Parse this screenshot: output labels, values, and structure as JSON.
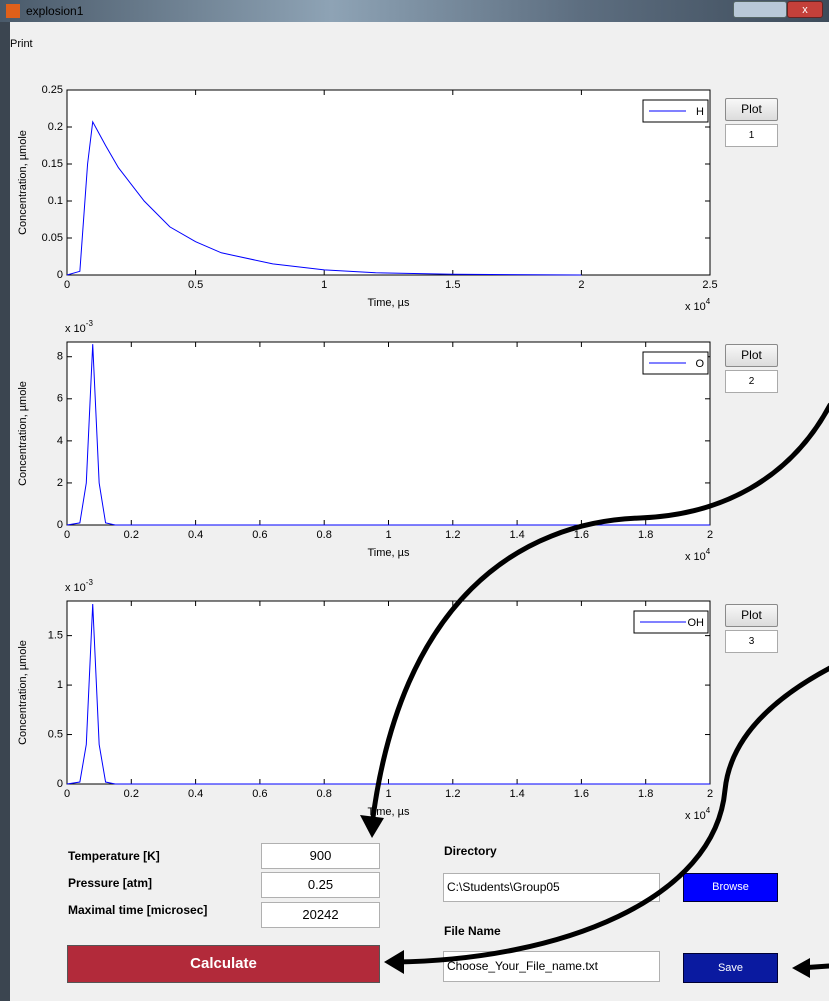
{
  "window": {
    "title": "explosion1",
    "menu": "Print"
  },
  "chart_data": [
    {
      "type": "line",
      "xlabel": "Time, µs",
      "ylabel": "Concentration, µmole",
      "x": [
        0,
        0.05,
        0.08,
        0.1,
        0.15,
        0.2,
        0.3,
        0.4,
        0.5,
        0.6,
        0.8,
        1.0,
        1.2,
        1.5,
        2.0
      ],
      "series": [
        {
          "name": "H",
          "color": "#0000ff",
          "values": [
            0,
            0.005,
            0.15,
            0.207,
            0.175,
            0.145,
            0.1,
            0.065,
            0.045,
            0.03,
            0.015,
            0.007,
            0.003,
            0.001,
            0
          ]
        }
      ],
      "xlim": [
        0,
        2.5
      ],
      "ylim": [
        0,
        0.25
      ],
      "xticks": [
        0,
        0.5,
        1,
        1.5,
        2,
        2.5
      ],
      "yticks": [
        0,
        0.05,
        0.1,
        0.15,
        0.2,
        0.25
      ],
      "x_scale": {
        "base": "x 10",
        "exponent": "4"
      },
      "legend": "upper right"
    },
    {
      "type": "line",
      "xlabel": "Time, µs",
      "ylabel": "Concentration, µmole",
      "x": [
        0,
        0.04,
        0.06,
        0.08,
        0.1,
        0.12,
        0.15,
        2.0
      ],
      "series": [
        {
          "name": "O",
          "color": "#0000ff",
          "values": [
            0,
            0.1,
            2,
            8.6,
            2,
            0.1,
            0,
            0
          ]
        }
      ],
      "xlim": [
        0,
        2
      ],
      "ylim": [
        0,
        8.7
      ],
      "xticks": [
        0,
        0.2,
        0.4,
        0.6,
        0.8,
        1,
        1.2,
        1.4,
        1.6,
        1.8,
        2
      ],
      "yticks": [
        0,
        2,
        4,
        6,
        8
      ],
      "x_scale": {
        "base": "x 10",
        "exponent": "4"
      },
      "y_scale": {
        "base": "x 10",
        "exponent": "-3"
      },
      "legend": "upper right"
    },
    {
      "type": "line",
      "xlabel": "Time, µs",
      "ylabel": "Concentration, µmole",
      "x": [
        0,
        0.04,
        0.06,
        0.08,
        0.1,
        0.12,
        0.15,
        2.0
      ],
      "series": [
        {
          "name": "OH",
          "color": "#0000ff",
          "values": [
            0,
            0.02,
            0.4,
            1.82,
            0.4,
            0.02,
            0,
            0
          ]
        }
      ],
      "xlim": [
        0,
        2
      ],
      "ylim": [
        0,
        1.85
      ],
      "xticks": [
        0,
        0.2,
        0.4,
        0.6,
        0.8,
        1,
        1.2,
        1.4,
        1.6,
        1.8,
        2
      ],
      "yticks": [
        0,
        0.5,
        1,
        1.5
      ],
      "x_scale": {
        "base": "x 10",
        "exponent": "4"
      },
      "y_scale": {
        "base": "x 10",
        "exponent": "-3"
      },
      "legend": "upper right"
    }
  ],
  "plot_buttons": [
    {
      "label": "Plot",
      "field": "1"
    },
    {
      "label": "Plot",
      "field": "2"
    },
    {
      "label": "Plot",
      "field": "3"
    }
  ],
  "form": {
    "temperature": {
      "label": "Temperature [K]",
      "value": "900"
    },
    "pressure": {
      "label": "Pressure [atm]",
      "value": "0.25"
    },
    "max_time": {
      "label": "Maximal time [microsec]",
      "value": "20242"
    },
    "directory": {
      "label": "Directory",
      "value": "C:\\Students\\Group05",
      "button": "Browse"
    },
    "file": {
      "label": "File Name",
      "value": "Choose_Your_File_name.txt",
      "button": "Save"
    },
    "calculate": "Calculate"
  }
}
